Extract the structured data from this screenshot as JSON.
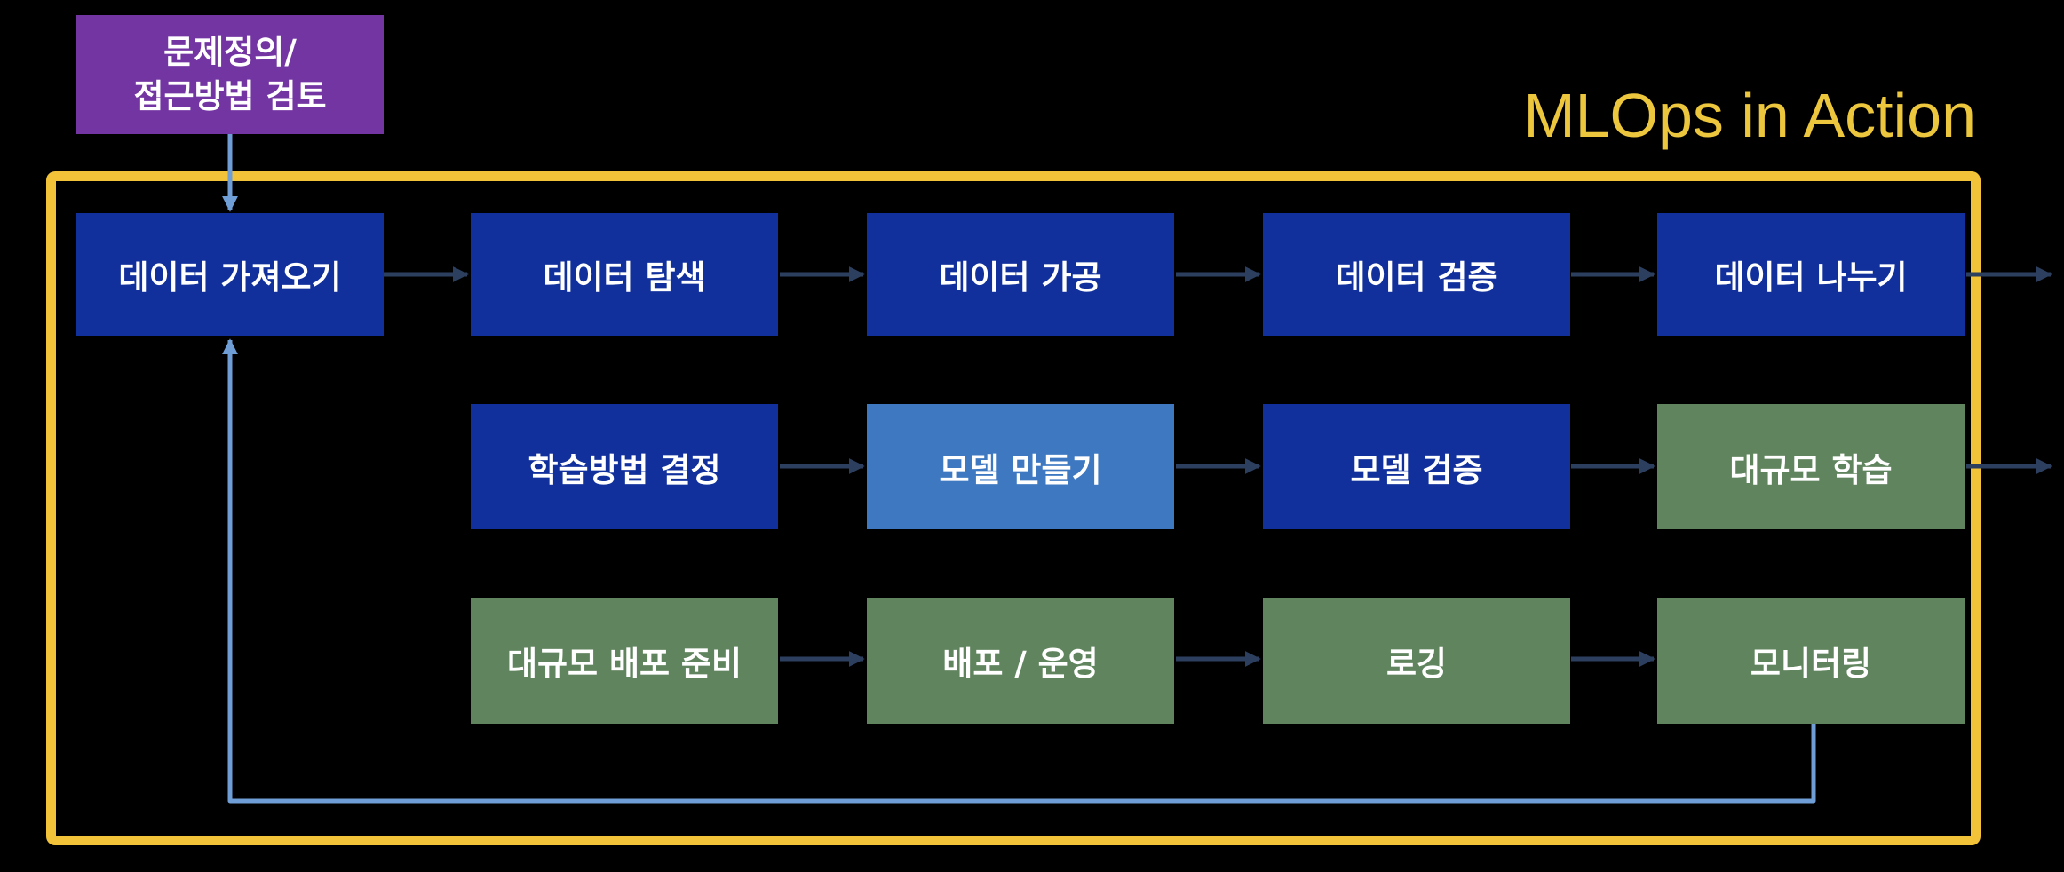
{
  "title": "MLOps in Action",
  "start_node": {
    "line1": "문제정의/",
    "line2": "접근방법 검토"
  },
  "rows": {
    "data": [
      "데이터 가져오기",
      "데이터 탐색",
      "데이터 가공",
      "데이터 검증",
      "데이터 나누기"
    ],
    "model": [
      "학습방법 결정",
      "모델 만들기",
      "모델 검증",
      "대규모 학습"
    ],
    "ops": [
      "대규모 배포 준비",
      "배포 / 운영",
      "로깅",
      "모니터링"
    ]
  },
  "colors": {
    "frame": "#f2c339",
    "title": "#ecc63c",
    "step_dark_blue": "#11309c",
    "step_light_blue": "#3d78c1",
    "step_green": "#60845d",
    "start_purple": "#7235a2",
    "connector": "#2d3f5f",
    "feedback_loop": "#6f9ed6"
  }
}
